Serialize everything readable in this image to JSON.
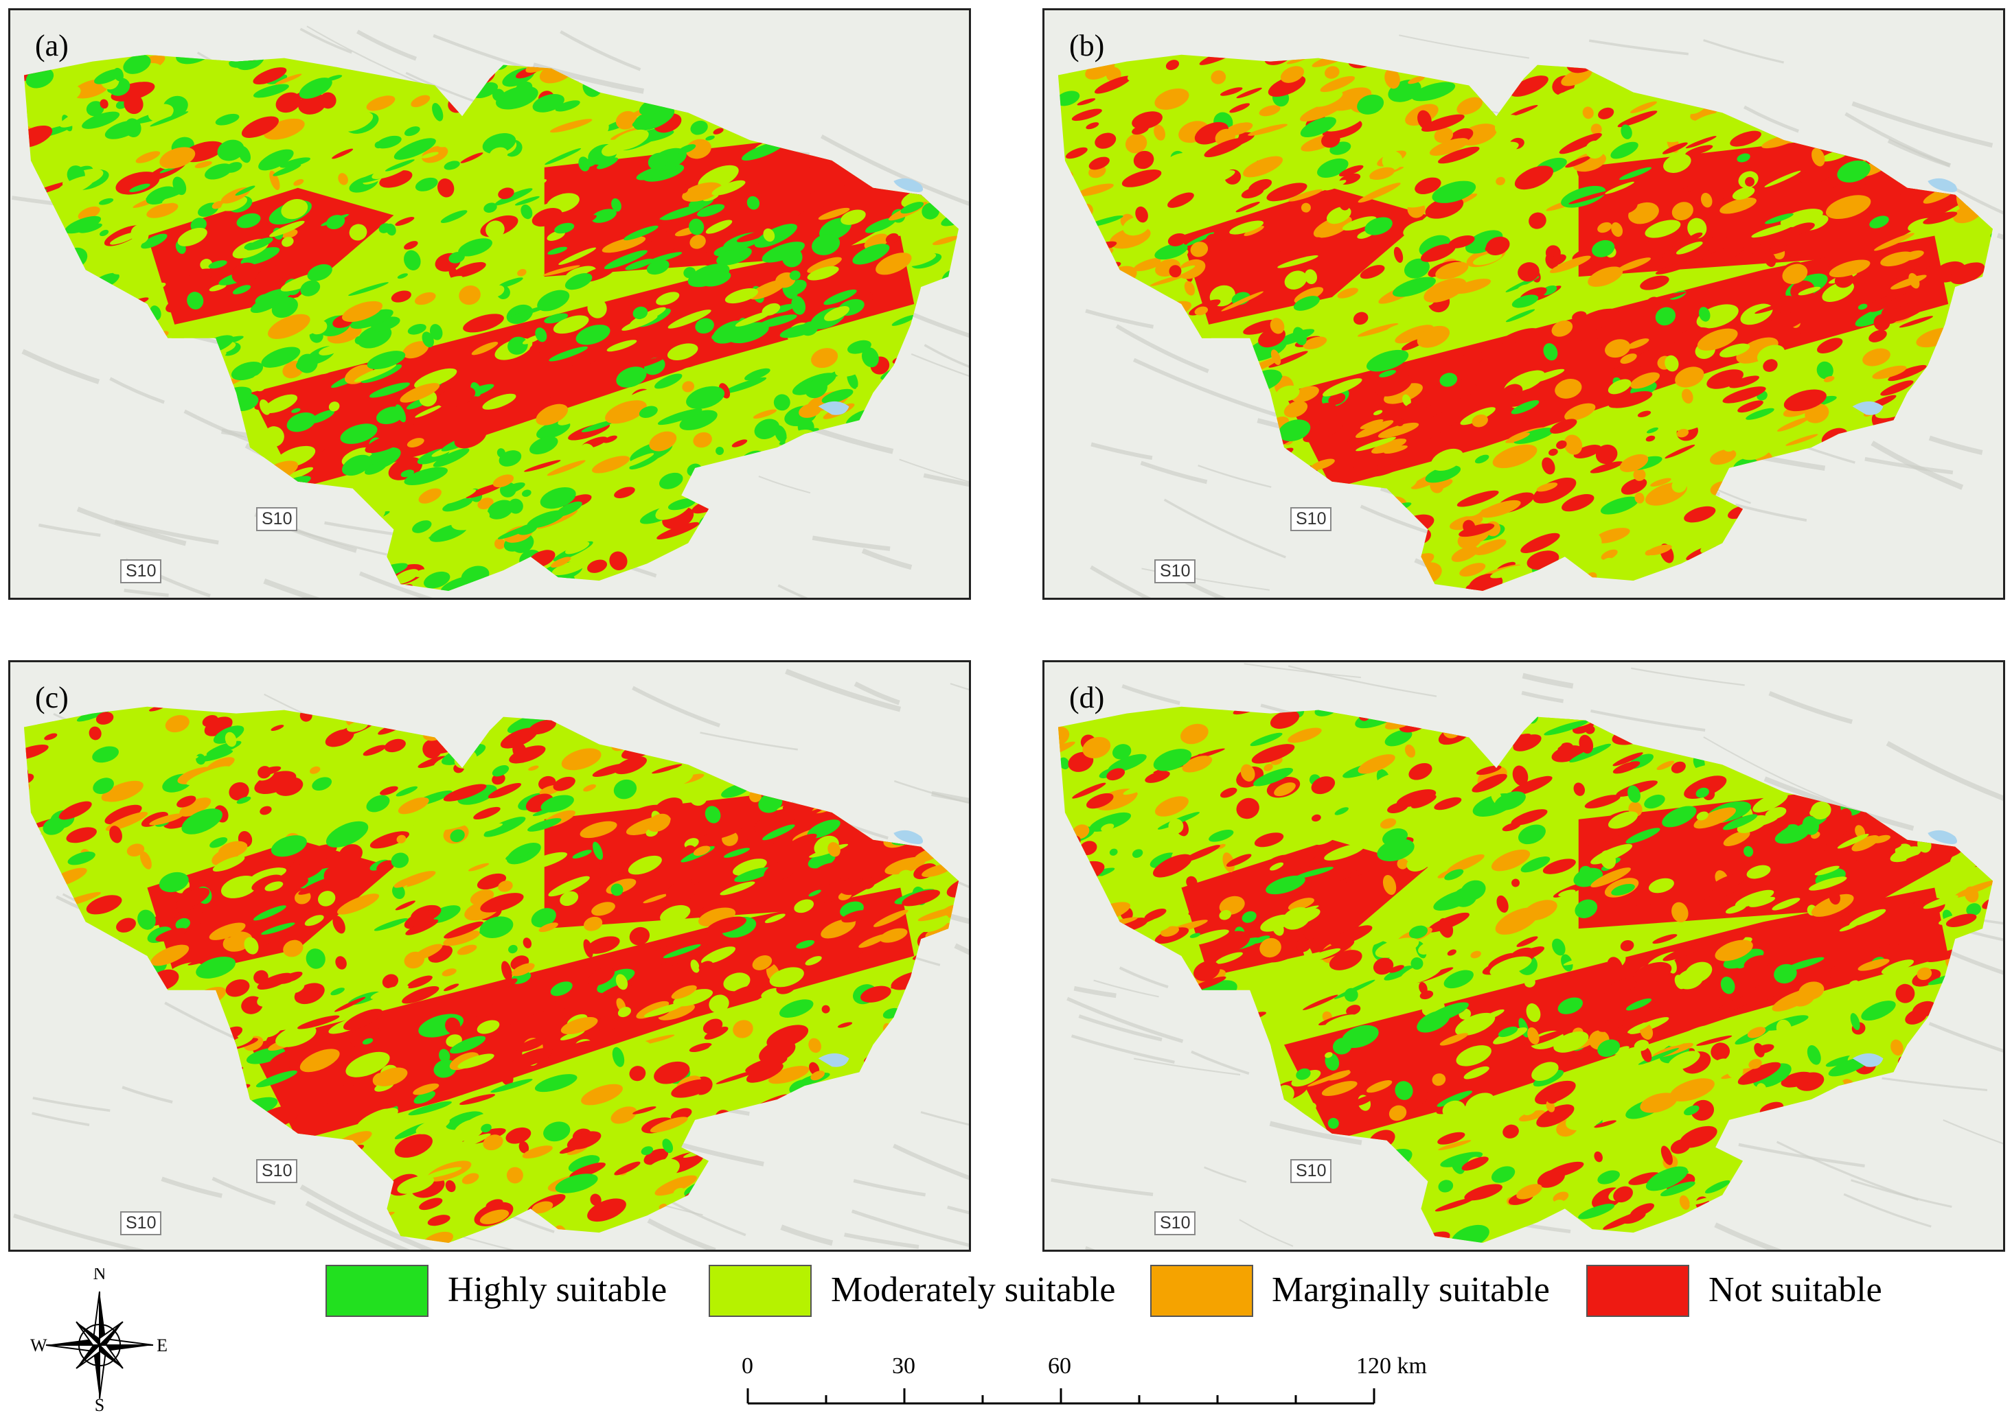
{
  "panels": [
    {
      "label": "(a)",
      "roads": [
        "S10",
        "S10"
      ]
    },
    {
      "label": "(b)",
      "roads": [
        "S10",
        "S10"
      ]
    },
    {
      "label": "(c)",
      "roads": [
        "S10",
        "S10"
      ]
    },
    {
      "label": "(d)",
      "roads": [
        "S10",
        "S10"
      ]
    }
  ],
  "legend": [
    {
      "label": "Highly suitable",
      "color": "#22e01f"
    },
    {
      "label": "Moderately suitable",
      "color": "#b6f200"
    },
    {
      "label": "Marginally suitable",
      "color": "#f5a300"
    },
    {
      "label": "Not suitable",
      "color": "#ee1a12"
    }
  ],
  "compass": {
    "n": "N",
    "s": "S",
    "e": "E",
    "w": "W"
  },
  "scale": {
    "labels": [
      "0",
      "30",
      "60",
      "120 km"
    ]
  },
  "colors": {
    "water": "#a9d4ee",
    "basemap": "#eceee9",
    "hillshade": "#c9ccc4"
  }
}
